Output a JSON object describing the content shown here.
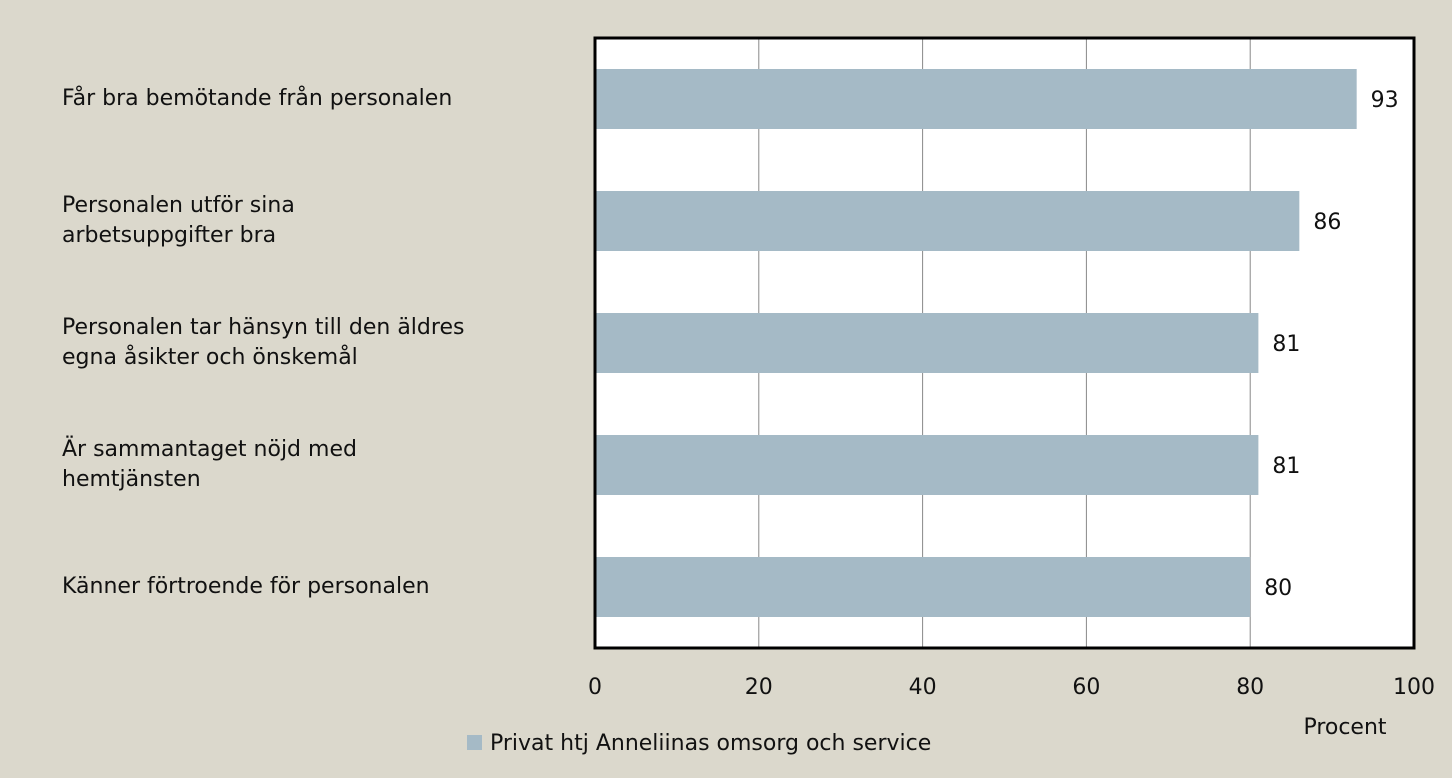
{
  "chart_data": {
    "type": "barh",
    "categories": [
      "Får bra bemötande från personalen",
      "Personalen utför sina\narbetsuppgifter bra",
      "Personalen tar hänsyn till den äldres\negna åsikter och önskemål",
      "Är sammantaget nöjd med\nhemtjänsten",
      "Känner förtroende för personalen"
    ],
    "series": [
      {
        "name": "Privat htj Anneliinas omsorg och service",
        "color": "#a5bac6",
        "values": [
          93,
          86,
          81,
          81,
          80
        ]
      }
    ],
    "xlabel": "Procent",
    "xlim": [
      0,
      100
    ],
    "xticks": [
      0,
      20,
      40,
      60,
      80,
      100
    ],
    "grid": true,
    "legend": "bottom"
  }
}
